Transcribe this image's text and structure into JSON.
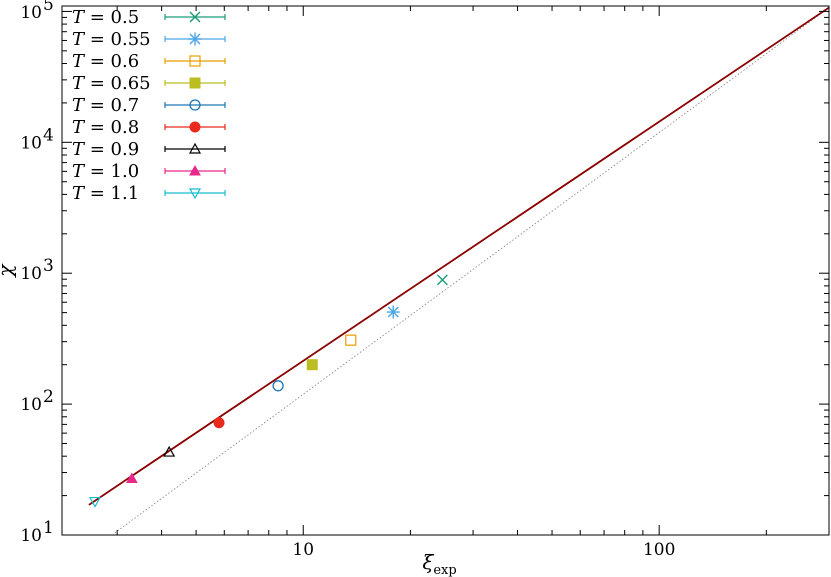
{
  "chart_data": {
    "type": "scatter",
    "xlabel": "ξ",
    "xlabel_sub": "exp",
    "ylabel": "χ",
    "xscale": "log",
    "yscale": "log",
    "xlim": [
      2.1,
      300
    ],
    "ylim": [
      10,
      110000
    ],
    "x_ticks": [
      {
        "value": 10,
        "label": "10"
      },
      {
        "value": 100,
        "label": "100"
      }
    ],
    "y_ticks": [
      {
        "value": 10,
        "base": "10",
        "exp": "1"
      },
      {
        "value": 100,
        "base": "10",
        "exp": "2"
      },
      {
        "value": 1000,
        "base": "10",
        "exp": "3"
      },
      {
        "value": 10000,
        "base": "10",
        "exp": "4"
      },
      {
        "value": 100000,
        "base": "10",
        "exp": "5"
      }
    ],
    "legend_position": "top-left",
    "series": [
      {
        "name": "T = 0.5",
        "var": "T",
        "value": "0.5",
        "marker": "x",
        "color": "#1a9e77",
        "points": [
          [
            24.6,
            890
          ]
        ]
      },
      {
        "name": "T = 0.55",
        "var": "T",
        "value": "0.55",
        "marker": "asterisk",
        "color": "#4da6e6",
        "points": [
          [
            17.9,
            505
          ]
        ]
      },
      {
        "name": "T = 0.6",
        "var": "T",
        "value": "0.6",
        "marker": "square-open",
        "color": "#e69f00",
        "points": [
          [
            13.6,
            308
          ]
        ]
      },
      {
        "name": "T = 0.65",
        "var": "T",
        "value": "0.65",
        "marker": "square-filled",
        "color": "#bcbd22",
        "points": [
          [
            10.6,
            200
          ]
        ]
      },
      {
        "name": "T = 0.7",
        "var": "T",
        "value": "0.7",
        "marker": "circle-open",
        "color": "#1f77b4",
        "points": [
          [
            8.5,
            138
          ]
        ]
      },
      {
        "name": "T = 0.8",
        "var": "T",
        "value": "0.8",
        "marker": "circle-filled",
        "color": "#e8291c",
        "points": [
          [
            5.8,
            72
          ]
        ]
      },
      {
        "name": "T = 0.9",
        "var": "T",
        "value": "0.9",
        "marker": "triangle-open",
        "color": "#000000",
        "points": [
          [
            4.2,
            43
          ]
        ]
      },
      {
        "name": "T = 1.0",
        "var": "T",
        "value": "1.0",
        "marker": "triangle-filled",
        "color": "#e7298a",
        "points": [
          [
            3.3,
            27
          ]
        ]
      },
      {
        "name": "T = 1.1",
        "var": "T",
        "value": "1.1",
        "marker": "triangle-down-open",
        "color": "#17becf",
        "points": [
          [
            2.6,
            18
          ]
        ]
      }
    ],
    "fit_line": {
      "color": "#8b0000",
      "points": [
        [
          2.5,
          17
        ],
        [
          300,
          107000
        ]
      ]
    },
    "reference_line": {
      "color": "#7f7f7f",
      "style": "dotted",
      "points": [
        [
          2.9,
          10
        ],
        [
          300,
          107000
        ]
      ]
    }
  }
}
